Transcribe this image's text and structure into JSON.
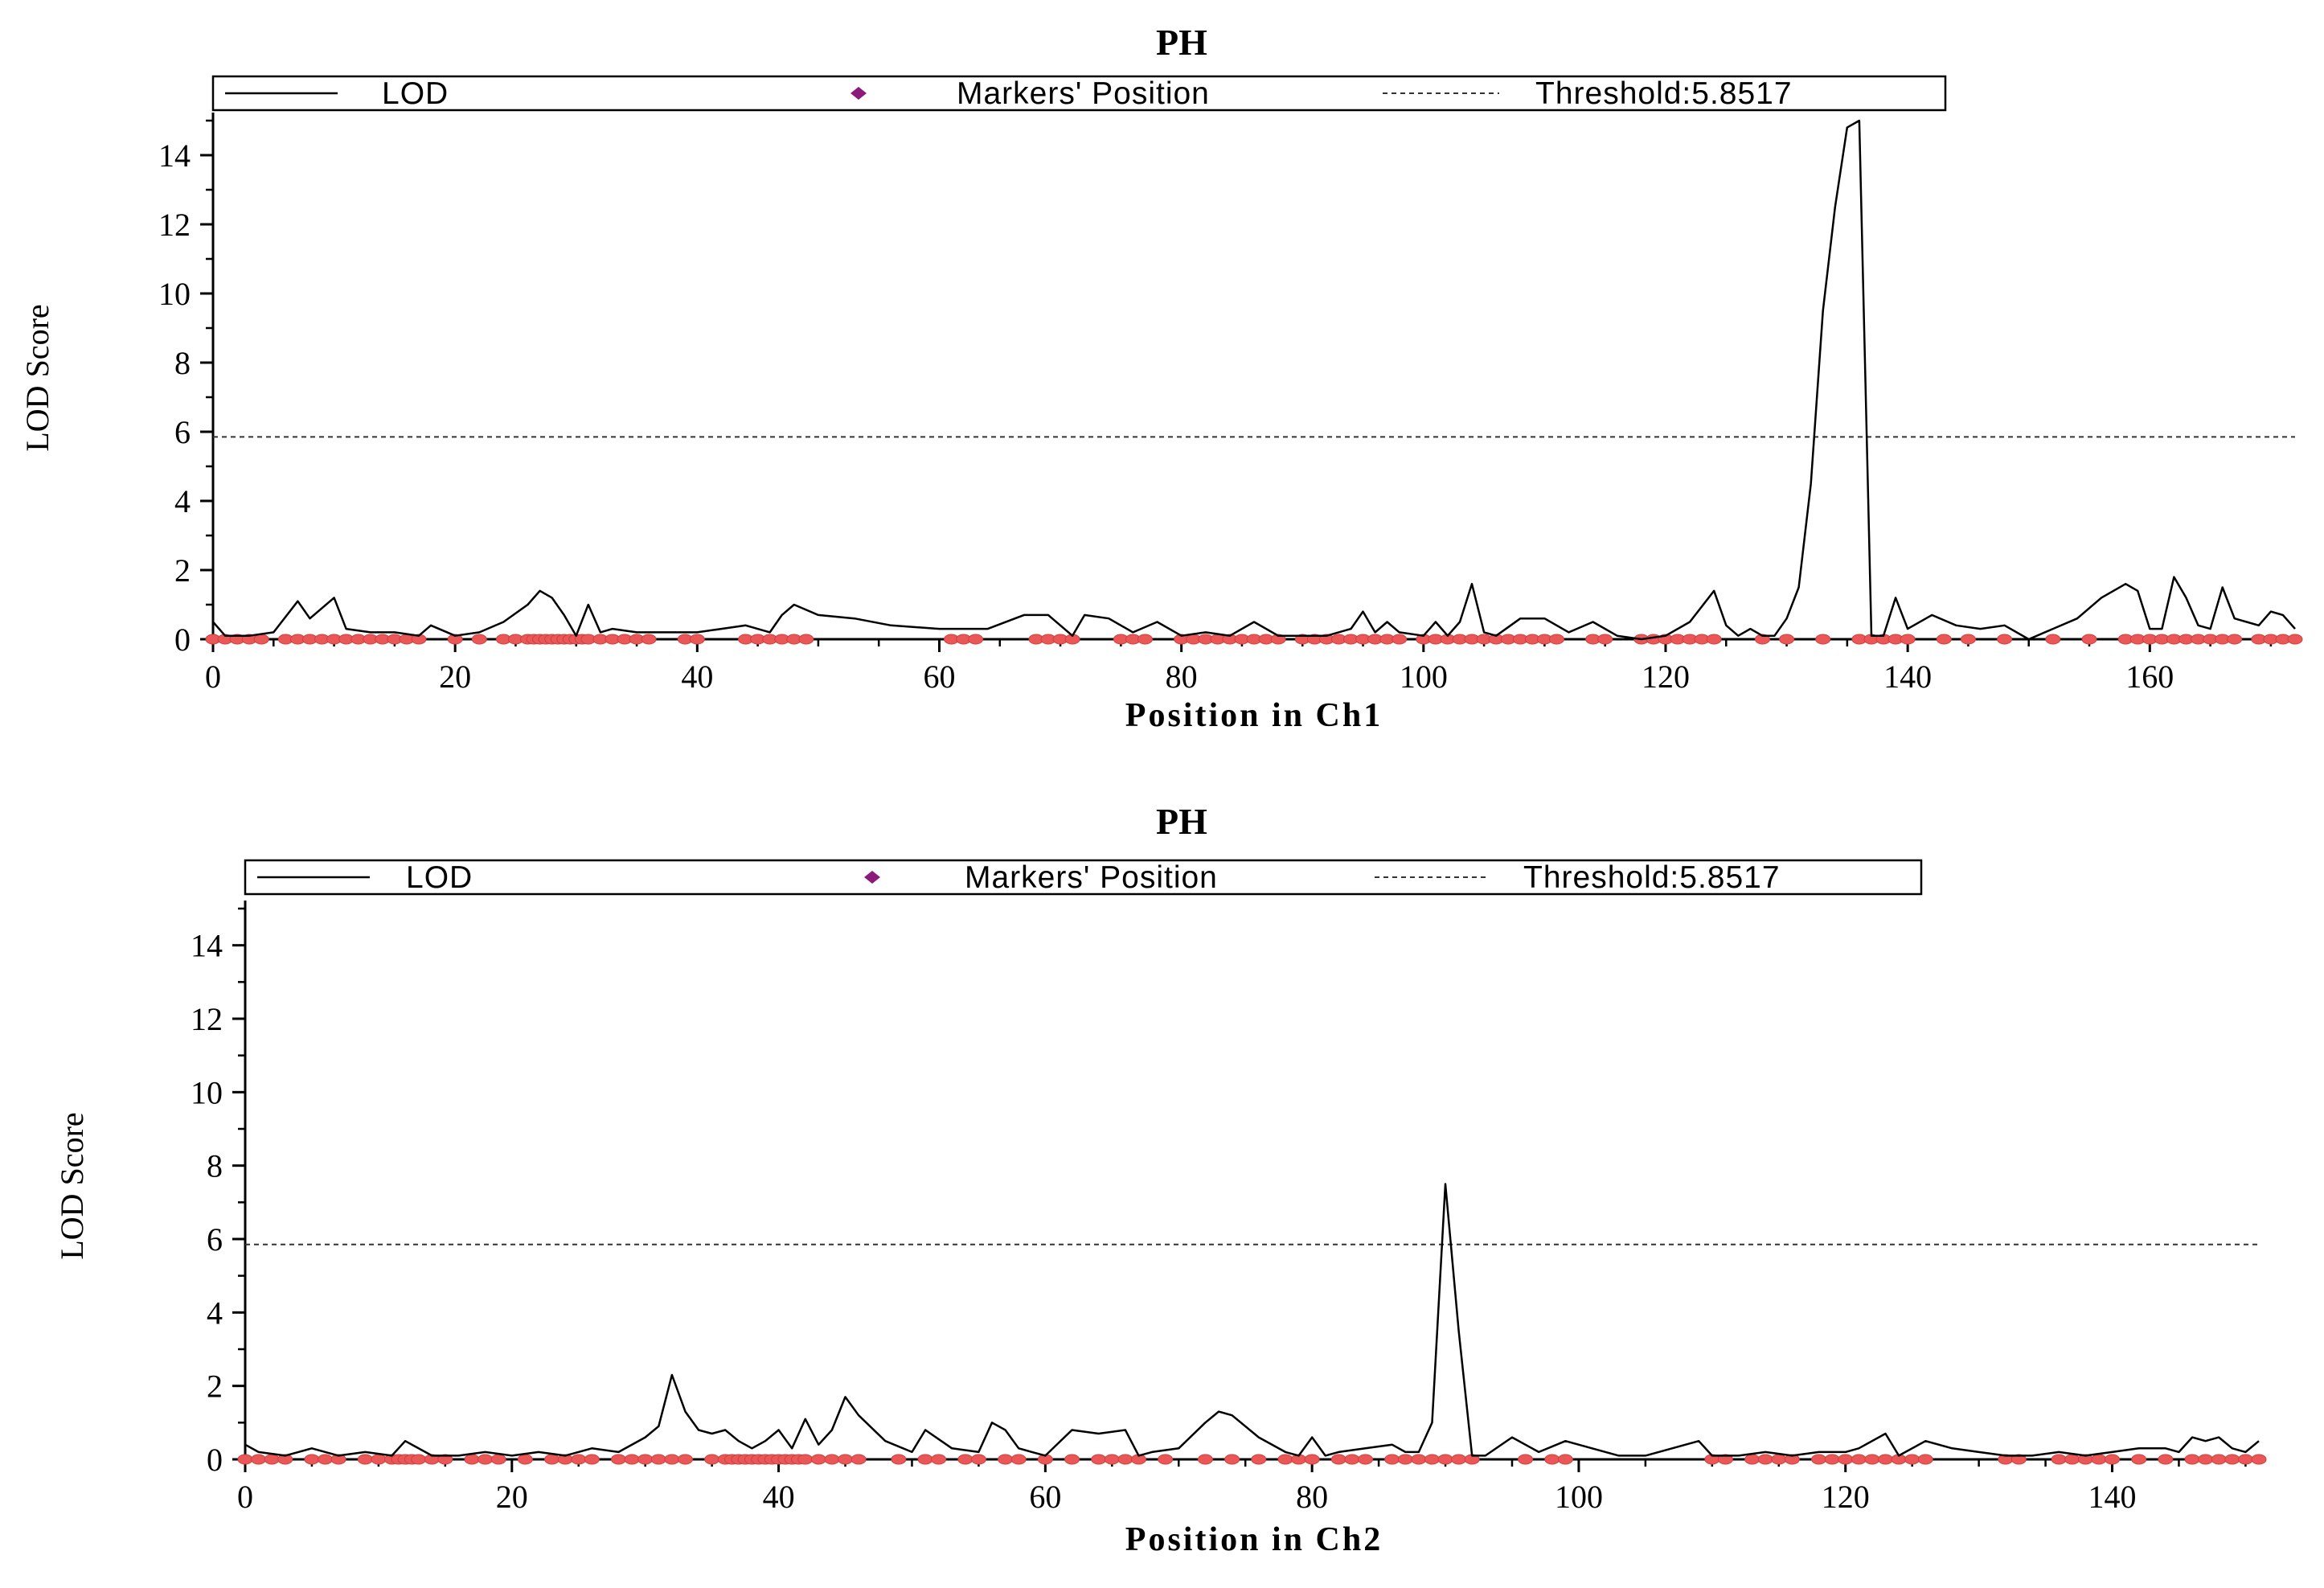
{
  "chart_data": [
    {
      "type": "line",
      "title": "PH",
      "xlabel": "Position in Ch1",
      "ylabel": "LOD Score",
      "xlim": [
        0,
        172
      ],
      "ylim": [
        0,
        15
      ],
      "x_ticks": [
        0,
        20,
        40,
        60,
        80,
        100,
        120,
        140,
        160
      ],
      "y_ticks": [
        0,
        2,
        4,
        6,
        8,
        10,
        12,
        14
      ],
      "threshold": 5.8517,
      "legend": {
        "placement": "top",
        "entries": [
          "LOD",
          "Markers' Position",
          "Threshold:5.8517"
        ]
      },
      "series": [
        {
          "name": "LOD",
          "x": [
            0,
            1,
            3,
            5,
            7,
            8,
            10,
            11,
            13,
            15,
            17,
            18,
            20,
            22,
            24,
            26,
            27,
            28,
            29,
            30,
            31,
            32,
            33,
            35,
            38,
            40,
            42,
            44,
            46,
            47,
            48,
            50,
            53,
            56,
            60,
            64,
            67,
            69,
            71,
            72,
            74,
            76,
            78,
            80,
            82,
            84,
            86,
            88,
            90,
            92,
            94,
            95,
            96,
            97,
            98,
            100,
            101,
            102,
            103,
            104,
            105,
            106,
            108,
            110,
            112,
            114,
            116,
            118,
            120,
            122,
            124,
            125,
            126,
            127,
            128,
            129,
            130,
            131,
            132,
            133,
            134,
            135,
            136,
            137,
            138,
            139,
            140,
            142,
            144,
            146,
            148,
            150,
            152,
            154,
            156,
            158,
            159,
            160,
            161,
            162,
            163,
            164,
            165,
            166,
            167,
            168,
            169,
            170,
            171,
            172
          ],
          "y": [
            0.5,
            0.1,
            0.1,
            0.2,
            1.1,
            0.6,
            1.2,
            0.3,
            0.2,
            0.2,
            0.1,
            0.4,
            0.1,
            0.2,
            0.5,
            1.0,
            1.4,
            1.2,
            0.7,
            0.1,
            1.0,
            0.2,
            0.3,
            0.2,
            0.2,
            0.2,
            0.3,
            0.4,
            0.2,
            0.7,
            1.0,
            0.7,
            0.6,
            0.4,
            0.3,
            0.3,
            0.7,
            0.7,
            0.1,
            0.7,
            0.6,
            0.2,
            0.5,
            0.1,
            0.2,
            0.1,
            0.5,
            0.1,
            0.1,
            0.1,
            0.3,
            0.8,
            0.2,
            0.5,
            0.2,
            0.1,
            0.5,
            0.1,
            0.5,
            1.6,
            0.2,
            0.1,
            0.6,
            0.6,
            0.2,
            0.5,
            0.1,
            0.0,
            0.1,
            0.5,
            1.4,
            0.4,
            0.1,
            0.3,
            0.1,
            0.1,
            0.6,
            1.5,
            4.5,
            9.5,
            12.5,
            14.8,
            15.0,
            0.1,
            0.1,
            1.2,
            0.3,
            0.7,
            0.4,
            0.3,
            0.4,
            0.0,
            0.3,
            0.6,
            1.2,
            1.6,
            1.4,
            0.3,
            0.3,
            1.8,
            1.2,
            0.4,
            0.3,
            1.5,
            0.6,
            0.5,
            0.4,
            0.8,
            0.7,
            0.3
          ]
        },
        {
          "name": "Markers' Position",
          "x": [
            0,
            1,
            2,
            3,
            4,
            6,
            7,
            8,
            9,
            10,
            11,
            12,
            13,
            14,
            15,
            16,
            17,
            20,
            22,
            24,
            25,
            26,
            26.5,
            27,
            27.5,
            28,
            28.5,
            29,
            29.5,
            30,
            30.5,
            31,
            32,
            33,
            34,
            35,
            36,
            39,
            40,
            44,
            45,
            46,
            47,
            48,
            49,
            61,
            62,
            63,
            68,
            69,
            70,
            71,
            75,
            76,
            77,
            80,
            81,
            82,
            83,
            84,
            85,
            86,
            87,
            88,
            90,
            91,
            92,
            93,
            94,
            95,
            96,
            97,
            98,
            100,
            101,
            102,
            103,
            104,
            105,
            106,
            107,
            108,
            109,
            110,
            111,
            114,
            115,
            118,
            119,
            120,
            121,
            122,
            123,
            124,
            128,
            130,
            133,
            136,
            137,
            138,
            139,
            140,
            143,
            145,
            148,
            152,
            155,
            158,
            159,
            160,
            161,
            162,
            163,
            164,
            165,
            166,
            167,
            169,
            170,
            171,
            172
          ]
        }
      ]
    },
    {
      "type": "line",
      "title": "PH",
      "xlabel": "Position in Ch2",
      "ylabel": "LOD Score",
      "xlim": [
        0,
        151
      ],
      "ylim": [
        0,
        15
      ],
      "x_ticks": [
        0,
        20,
        40,
        60,
        80,
        100,
        120,
        140
      ],
      "y_ticks": [
        0,
        2,
        4,
        6,
        8,
        10,
        12,
        14
      ],
      "threshold": 5.8517,
      "legend": {
        "placement": "top",
        "entries": [
          "LOD",
          "Markers' Position",
          "Threshold:5.8517"
        ]
      },
      "series": [
        {
          "name": "LOD",
          "x": [
            0,
            1,
            3,
            5,
            7,
            9,
            11,
            12,
            14,
            16,
            18,
            20,
            22,
            24,
            26,
            28,
            30,
            31,
            32,
            33,
            34,
            35,
            36,
            37,
            38,
            39,
            40,
            41,
            42,
            43,
            44,
            45,
            46,
            48,
            50,
            51,
            53,
            55,
            56,
            57,
            58,
            59,
            60,
            62,
            64,
            66,
            67,
            68,
            70,
            72,
            73,
            74,
            76,
            78,
            79,
            80,
            81,
            82,
            84,
            86,
            87,
            88,
            89,
            90,
            91,
            92,
            93,
            95,
            97,
            99,
            101,
            103,
            105,
            107,
            109,
            110,
            112,
            114,
            116,
            118,
            120,
            121,
            123,
            124,
            126,
            128,
            130,
            132,
            134,
            136,
            138,
            140,
            142,
            144,
            145,
            146,
            147,
            148,
            149,
            150,
            151
          ],
          "y": [
            0.4,
            0.2,
            0.1,
            0.3,
            0.1,
            0.2,
            0.1,
            0.5,
            0.1,
            0.1,
            0.2,
            0.1,
            0.2,
            0.1,
            0.3,
            0.2,
            0.6,
            0.9,
            2.3,
            1.3,
            0.8,
            0.7,
            0.8,
            0.5,
            0.3,
            0.5,
            0.8,
            0.3,
            1.1,
            0.4,
            0.8,
            1.7,
            1.2,
            0.5,
            0.2,
            0.8,
            0.3,
            0.2,
            1.0,
            0.8,
            0.3,
            0.2,
            0.1,
            0.8,
            0.7,
            0.8,
            0.1,
            0.2,
            0.3,
            1.0,
            1.3,
            1.2,
            0.6,
            0.2,
            0.1,
            0.6,
            0.1,
            0.2,
            0.3,
            0.4,
            0.2,
            0.2,
            1.0,
            7.5,
            3.5,
            0.1,
            0.1,
            0.6,
            0.2,
            0.5,
            0.3,
            0.1,
            0.1,
            0.3,
            0.5,
            0.1,
            0.1,
            0.2,
            0.1,
            0.2,
            0.2,
            0.3,
            0.7,
            0.1,
            0.5,
            0.3,
            0.2,
            0.1,
            0.1,
            0.2,
            0.1,
            0.2,
            0.3,
            0.3,
            0.2,
            0.6,
            0.5,
            0.6,
            0.3,
            0.2,
            0.5
          ]
        },
        {
          "name": "Markers' Position",
          "x": [
            0,
            1,
            2,
            3,
            5,
            6,
            7,
            9,
            10,
            11,
            11.5,
            12,
            12.5,
            13,
            14,
            15,
            17,
            18,
            19,
            21,
            23,
            24,
            25,
            26,
            28,
            29,
            30,
            31,
            32,
            33,
            35,
            36,
            36.5,
            37,
            37.5,
            38,
            38.5,
            39,
            39.5,
            40,
            40.5,
            41,
            41.5,
            42,
            43,
            44,
            45,
            46,
            49,
            51,
            52,
            54,
            55,
            57,
            58,
            60,
            62,
            64,
            65,
            66,
            67,
            69,
            72,
            74,
            76,
            78,
            79,
            80,
            82,
            83,
            84,
            86,
            87,
            88,
            89,
            90,
            91,
            92,
            96,
            98,
            99,
            110,
            111,
            113,
            114,
            115,
            116,
            118,
            119,
            120,
            121,
            122,
            123,
            124,
            125,
            126,
            132,
            133,
            136,
            137,
            138,
            139,
            140,
            142,
            144,
            146,
            147,
            148,
            149,
            150,
            151
          ]
        }
      ]
    }
  ],
  "colors": {
    "lod": "#000000",
    "marker": "#ea5757",
    "legend_marker": "#8b1a7a",
    "threshold": "#333333"
  }
}
